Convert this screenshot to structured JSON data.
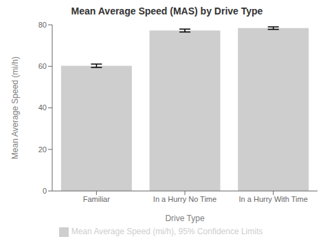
{
  "chart_data": {
    "type": "bar",
    "title": "Mean Average Speed (MAS) by Drive Type",
    "xlabel": "Drive Type",
    "ylabel": "Mean Average Speed (mi/h)",
    "categories": [
      "Familiar",
      "In a Hurry No Time",
      "In a Hurry With Time"
    ],
    "series": [
      {
        "name": "Mean Average Speed (mi/h), 95% Confidence Limits",
        "color": "#cecece",
        "values": [
          60.29,
          77.23,
          78.4
        ],
        "errors": [
          0.8,
          0.7,
          0.6
        ]
      }
    ],
    "ylim": [
      0,
      80
    ],
    "yticks": [
      0,
      20,
      40,
      60,
      80
    ],
    "grid": false,
    "legend": "bottom"
  }
}
